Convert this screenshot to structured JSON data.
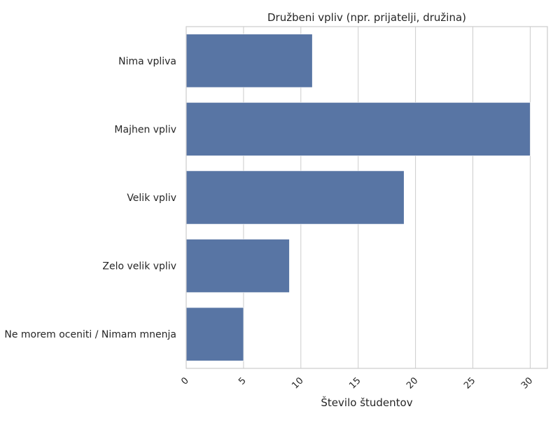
{
  "chart_data": {
    "type": "bar",
    "orientation": "horizontal",
    "title": "Družbeni vpliv (npr. prijatelji, družina)",
    "xlabel": "Število študentov",
    "ylabel": "",
    "categories": [
      "Nima vpliva",
      "Majhen vpliv",
      "Velik vpliv",
      "Zelo velik vpliv",
      "Ne morem oceniti / Nimam mnenja"
    ],
    "values": [
      11,
      30,
      19,
      9,
      5
    ],
    "xlim": [
      0,
      31.5
    ],
    "xticks": [
      0,
      5,
      10,
      15,
      20,
      25,
      30
    ],
    "tick_rotation": 45,
    "grid": true,
    "bar_color": "#5875a4",
    "grid_color": "#cccccc",
    "axes_edge_color": "#cccccc"
  }
}
